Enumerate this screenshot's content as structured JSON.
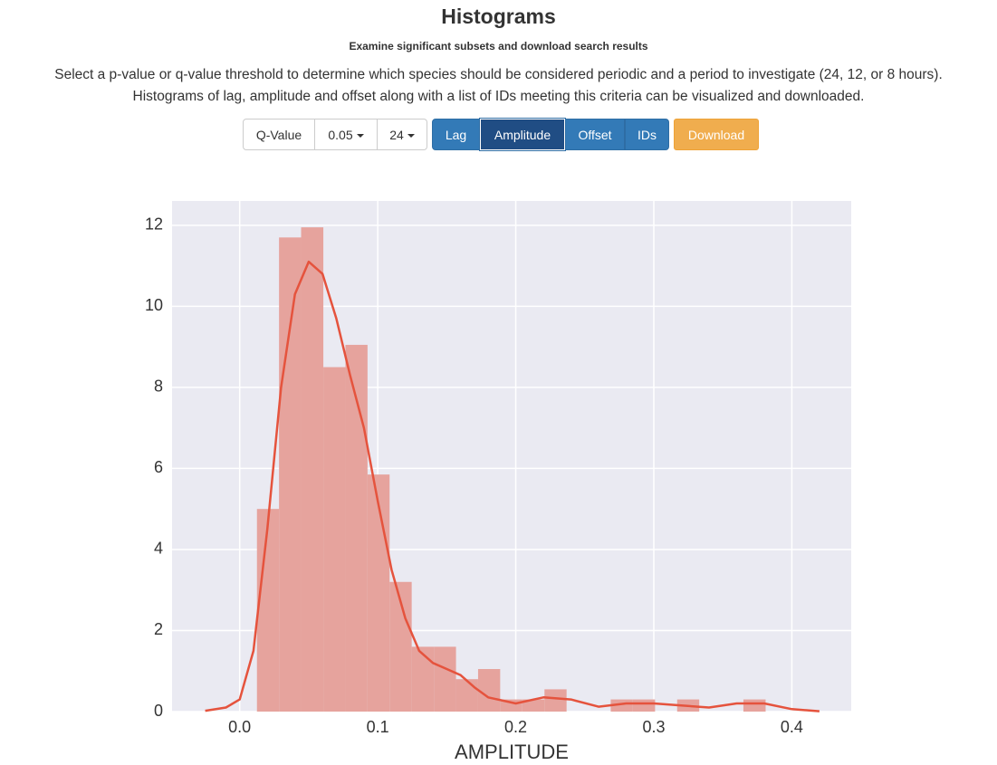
{
  "header": {
    "title": "Histograms",
    "subtitle": "Examine significant subsets and download search results",
    "description": [
      "Select a p-value or q-value threshold to determine which species should be considered periodic and a period to investigate (24, 12, or 8 hours).",
      "Histograms of lag, amplitude and offset along with a list of IDs meeting this criteria can be visualized and downloaded."
    ]
  },
  "controls": {
    "selectors": [
      "Q-Value",
      "0.05",
      "24"
    ],
    "tabs": [
      "Lag",
      "Amplitude",
      "Offset",
      "IDs"
    ],
    "active_tab": "Amplitude",
    "download": "Download"
  },
  "chart_data": {
    "type": "histogram",
    "xlabel": "AMPLITUDE",
    "bins": [
      0.0125,
      0.0285,
      0.0445,
      0.0606,
      0.0766,
      0.0926,
      0.1086,
      0.1246,
      0.1407,
      0.1567,
      0.1727,
      0.1887,
      0.2047,
      0.2208,
      0.2368,
      0.2528,
      0.2688,
      0.2848,
      0.3009,
      0.3169,
      0.3329,
      0.3489,
      0.3649,
      0.381
    ],
    "counts": [
      5.0,
      11.7,
      11.95,
      8.5,
      9.05,
      5.85,
      3.2,
      1.6,
      1.6,
      0.8,
      1.05,
      0.3,
      0.3,
      0.55,
      0,
      0,
      0.3,
      0.3,
      0,
      0.3,
      0,
      0,
      0.3
    ],
    "color": "#e6a39d",
    "kde": {
      "color": "#e5533d",
      "x": [
        -0.025,
        -0.01,
        0.0,
        0.01,
        0.02,
        0.03,
        0.04,
        0.05,
        0.06,
        0.07,
        0.08,
        0.09,
        0.1,
        0.11,
        0.12,
        0.13,
        0.14,
        0.15,
        0.16,
        0.17,
        0.18,
        0.2,
        0.22,
        0.24,
        0.26,
        0.28,
        0.3,
        0.32,
        0.34,
        0.36,
        0.38,
        0.4,
        0.42
      ],
      "y": [
        0.02,
        0.1,
        0.3,
        1.5,
        4.5,
        8.0,
        10.3,
        11.1,
        10.8,
        9.7,
        8.3,
        7.0,
        5.2,
        3.5,
        2.3,
        1.5,
        1.2,
        1.05,
        0.9,
        0.6,
        0.35,
        0.2,
        0.35,
        0.3,
        0.12,
        0.2,
        0.2,
        0.15,
        0.1,
        0.2,
        0.2,
        0.06,
        0.01
      ]
    },
    "xlim": [
      -0.049,
      0.443
    ],
    "ylim": [
      0,
      12.6
    ],
    "xticks": [
      {
        "value": 0,
        "label": "0.0"
      },
      0.1,
      0.2,
      0.3,
      0.4
    ],
    "yticks": [
      0,
      2,
      4,
      6,
      8,
      10,
      12
    ],
    "grid": true,
    "background": "#eaeaf2"
  }
}
